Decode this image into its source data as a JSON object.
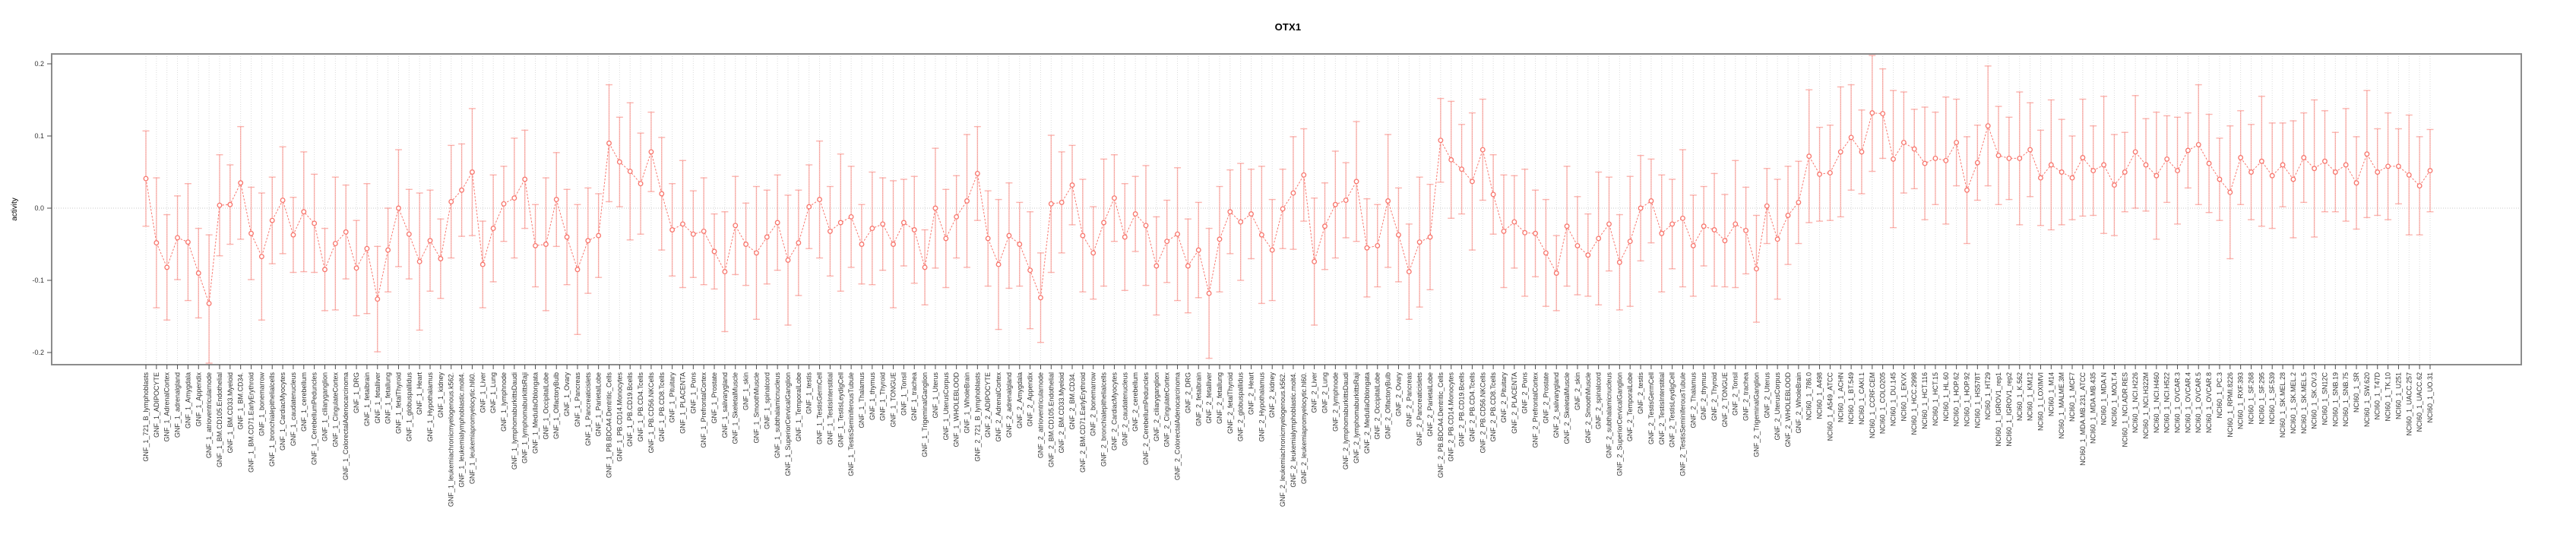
{
  "figure": {
    "title": "OTX1"
  },
  "y_axis": {
    "label": "activity",
    "tick_labels": [
      "0.2",
      "0.1",
      "0.0",
      "-0.1",
      "-0.2"
    ],
    "tick_values": [
      0.2,
      0.1,
      0.0,
      -0.1,
      -0.2
    ]
  },
  "style": {
    "accent": "#F8766D",
    "errorbar": "rgba(248,118,109,0.55)",
    "grid": "#DBDBDB",
    "zero_line": "#C8C8C8",
    "panel_border": "#8C8C8C",
    "axis_text": "#333333"
  },
  "chart_data": {
    "type": "line",
    "title": "OTX1",
    "xlabel": "",
    "ylabel": "activity",
    "ylim": [
      -0.215,
      0.215
    ],
    "grid": "vertical-dotted, zero-line-dotted",
    "legend": "none",
    "marker": "open-circle",
    "line_style": "dashed",
    "error_bars": true,
    "categories": [
      "GNF_1_721_B_lymphoblasts",
      "GNF_1_ADIPOCYTE",
      "GNF_1_AdrenalCortex",
      "GNF_1_adrenalgland",
      "GNF_1_Amygdala",
      "GNF_1_Appendix",
      "GNF_1_atrioventricularnode",
      "GNF_1_BM.CD105.Endothelial",
      "GNF_1_BM.CD33.Myeloid",
      "GNF_1_BM.CD34.",
      "GNF_1_BM.CD71.EarlyErythroid",
      "GNF_1_bonemarrow",
      "GNF_1_bronchialepithelialcells",
      "GNF_1_CardiacMyocytes",
      "GNF_1_caudatenucleus",
      "GNF_1_cerebellum",
      "GNF_1_CerebellumPeduncles",
      "GNF_1_ciliaryganglion",
      "GNF_1_CingulateCortex",
      "GNF_1_ColorectalAdenocarcinoma",
      "GNF_1_DRG",
      "GNF_1_fetalbrain",
      "GNF_1_fetalliver",
      "GNF_1_fetallung",
      "GNF_1_fetalThyroid",
      "GNF_1_globuspallidus",
      "GNF_1_Heart",
      "GNF_1_Hypothalamus",
      "GNF_1_kidney",
      "GNF_1_leukemiachronicmyelogenous.k562.",
      "GNF_1_leukemialymphoblastic.molt4.",
      "GNF_1_leukemiapromyelocytic.hl60.",
      "GNF_1_Liver",
      "GNF_1_Lung",
      "GNF_1_lymphnode",
      "GNF_1_lymphomaburkittsDaudi",
      "GNF_1_lymphomaburkittsRaji",
      "GNF_1_MedullaOblongata",
      "GNF_1_OccipitalLobe",
      "GNF_1_OlfactoryBulb",
      "GNF_1_Ovary",
      "GNF_1_Pancreas",
      "GNF_1_Pancreaticislets",
      "GNF_1_ParietalLobe",
      "GNF_1_PB.BDCA4.Dentritic_Cells",
      "GNF_1_PB.CD14.Monocytes",
      "GNF_1_PB.CD19.Bcells",
      "GNF_1_PB.CD4.Tcells",
      "GNF_1_PB.CD56.NKCells",
      "GNF_1_PB.CD8.Tcells",
      "GNF_1_Pituitary",
      "GNF_1_PLACENTA",
      "GNF_1_Pons",
      "GNF_1_PrefrontalCortex",
      "GNF_1_Prostate",
      "GNF_1_salivarygland",
      "GNF_1_SkeletalMuscle",
      "GNF_1_skin",
      "GNF_1_SmoothMuscle",
      "GNF_1_spinalcord",
      "GNF_1_subthalamicnucleus",
      "GNF_1_SuperiorCervicalGanglion",
      "GNF_1_TemporalLobe",
      "GNF_1_testis",
      "GNF_1_TestisGermCell",
      "GNF_1_TestisInterstitial",
      "GNF_1_TestisLeydigCell",
      "GNF_1_TestisSeminiferousTubule",
      "GNF_1_Thalamus",
      "GNF_1_thymus",
      "GNF_1_Thyroid",
      "GNF_1_TONGUE",
      "GNF_1_Tonsil",
      "GNF_1_trachea",
      "GNF_1_TrigeminalGanglion",
      "GNF_1_Uterus",
      "GNF_1_UterusCorpus",
      "GNF_1_WHOLEBLOOD",
      "GNF_1_WholeBrain",
      "GNF_2_721_B_lymphoblasts",
      "GNF_2_ADIPOCYTE",
      "GNF_2_AdrenalCortex",
      "GNF_2_adrenalgland",
      "GNF_2_Amygdala",
      "GNF_2_Appendix",
      "GNF_2_atrioventricularnode",
      "GNF_2_BM.CD105.Endothelial",
      "GNF_2_BM.CD33.Myeloid",
      "GNF_2_BM.CD34.",
      "GNF_2_BM.CD71.EarlyErythroid",
      "GNF_2_bonemarrow",
      "GNF_2_bronchialepithelialcells",
      "GNF_2_CardiacMyocytes",
      "GNF_2_caudatenucleus",
      "GNF_2_cerebellum",
      "GNF_2_CerebellumPeduncles",
      "GNF_2_ciliaryganglion",
      "GNF_2_CingulateCortex",
      "GNF_2_ColorectalAdenocarcinoma",
      "GNF_2_DRG",
      "GNF_2_fetalbrain",
      "GNF_2_fetalliver",
      "GNF_2_fetallung",
      "GNF_2_fetalThyroid",
      "GNF_2_globuspallidus",
      "GNF_2_Heart",
      "GNF_2_Hypothalamus",
      "GNF_2_kidney",
      "GNF_2_leukemiachronicmyelogenous.k562.",
      "GNF_2_leukemialymphoblastic.molt4.",
      "GNF_2_leukemiapromyelocytic.hl60.",
      "GNF_2_Liver",
      "GNF_2_Lung",
      "GNF_2_lymphnode",
      "GNF_2_lymphomaburkittsDaudi",
      "GNF_2_lymphomaburkittsRaji",
      "GNF_2_MedullaOblongata",
      "GNF_2_OccipitalLobe",
      "GNF_2_OlfactoryBulb",
      "GNF_2_Ovary",
      "GNF_2_Pancreas",
      "GNF_2_Pancreaticislets",
      "GNF_2_ParietalLobe",
      "GNF_2_PB.BDCA4.Dentritic_Cells",
      "GNF_2_PB.CD14.Monocytes",
      "GNF_2_PB.CD19.Bcells",
      "GNF_2_PB.CD4.Tcells",
      "GNF_2_PB.CD56.NKCells",
      "GNF_2_PB.CD8.Tcells",
      "GNF_2_Pituitary",
      "GNF_2_PLACENTA",
      "GNF_2_Pons",
      "GNF_2_PrefrontalCortex",
      "GNF_2_Prostate",
      "GNF_2_salivarygland",
      "GNF_2_SkeletalMuscle",
      "GNF_2_skin",
      "GNF_2_SmoothMuscle",
      "GNF_2_spinalcord",
      "GNF_2_subthalamicnucleus",
      "GNF_2_SuperiorCervicalGanglion",
      "GNF_2_TemporalLobe",
      "GNF_2_testis",
      "GNF_2_TestisGermCell",
      "GNF_2_TestisInterstitial",
      "GNF_2_TestisLeydigCell",
      "GNF_2_TestisSeminiferousTubule",
      "GNF_2_Thalamus",
      "GNF_2_thymus",
      "GNF_2_Thyroid",
      "GNF_2_TONGUE",
      "GNF_2_Tonsil",
      "GNF_2_trachea",
      "GNF_2_TrigeminalGanglion",
      "GNF_2_Uterus",
      "GNF_2_UterusCorpus",
      "GNF_2_WHOLEBLOOD",
      "GNF_2_WholeBrain",
      "NCI60_1_786.0",
      "NCI60_1_A498",
      "NCI60_1_A549_ATCC",
      "NCI60_1_ACHN",
      "NCI60_1_BT.549",
      "NCI60_1_CAKI.1",
      "NCI60_1_CCRF.CEM",
      "NCI60_1_COLO205",
      "NCI60_1_DU.145",
      "NCI60_1_EKVX",
      "NCI60_1_HCC.2998",
      "NCI60_1_HCT.116",
      "NCI60_1_HCT.15",
      "NCI60_1_HL.60",
      "NCI60_1_HOP.62",
      "NCI60_1_HOP.92",
      "NCI60_1_HS578T",
      "NCI60_1_HT29",
      "NCI60_1_IGROV1_rep1",
      "NCI60_1_IGROV1_rep2",
      "NCI60_1_K.562",
      "NCI60_1_KM12",
      "NCI60_1_LOXIMVI",
      "NCI60_1_M14",
      "NCI60_1_MALME.3M",
      "NCI60_1_MCF7",
      "NCI60_1_MDA.MB.231_ATCC",
      "NCI60_1_MDA.MB.435",
      "NCI60_1_MDA.N",
      "NCI60_1_MOLT.4",
      "NCI60_1_NCI.ADR.RES",
      "NCI60_1_NCI.H226",
      "NCI60_1_NCI.H322M",
      "NCI60_1_NCI.H460",
      "NCI60_1_NCI.H522",
      "NCI60_1_OVCAR.3",
      "NCI60_1_OVCAR.4",
      "NCI60_1_OVCAR.5",
      "NCI60_1_OVCAR.8",
      "NCI60_1_PC.3",
      "NCI60_1_RPMI.8226",
      "NCI60_1_RXF.393",
      "NCI60_1_SF.268",
      "NCI60_1_SF.295",
      "NCI60_1_SF.539",
      "NCI60_1_SK.MEL.28",
      "NCI60_1_SK.MEL.2",
      "NCI60_1_SK.MEL.5",
      "NCI60_1_SK.OV.3",
      "NCI60_1_SN12C",
      "NCI60_1_SNB.19",
      "NCI60_1_SNB.75",
      "NCI60_1_SR",
      "NCI60_1_SW.620",
      "NCI60_1_T47D",
      "NCI60_1_TK.10",
      "NCI60_1_U251",
      "NCI60_1_UACC.257",
      "NCI60_1_UACC.62",
      "NCI60_1_UO.31"
    ],
    "values": [
      0.041,
      -0.048,
      -0.082,
      -0.041,
      -0.047,
      -0.09,
      -0.132,
      0.004,
      0.005,
      0.035,
      -0.035,
      -0.067,
      -0.017,
      0.011,
      -0.037,
      -0.005,
      -0.021,
      -0.085,
      -0.049,
      -0.033,
      -0.083,
      -0.056,
      -0.126,
      -0.058,
      0.0,
      -0.036,
      -0.074,
      -0.045,
      -0.07,
      0.009,
      0.025,
      0.05,
      -0.078,
      -0.028,
      0.006,
      0.014,
      0.04,
      -0.052,
      -0.05,
      0.012,
      -0.04,
      -0.085,
      -0.045,
      -0.038,
      0.09,
      0.064,
      0.051,
      0.034,
      0.078,
      0.02,
      -0.03,
      -0.022,
      -0.036,
      -0.032,
      -0.06,
      -0.088,
      -0.024,
      -0.05,
      -0.062,
      -0.04,
      -0.02,
      -0.072,
      -0.048,
      0.002,
      0.012,
      -0.032,
      -0.02,
      -0.012,
      -0.05,
      -0.028,
      -0.022,
      -0.05,
      -0.02,
      -0.03,
      -0.082,
      0.0,
      -0.042,
      -0.012,
      0.01,
      0.048,
      -0.042,
      -0.078,
      -0.038,
      -0.05,
      -0.086,
      -0.124,
      0.006,
      0.008,
      0.032,
      -0.038,
      -0.062,
      -0.02,
      0.014,
      -0.04,
      -0.008,
      -0.024,
      -0.08,
      -0.046,
      -0.036,
      -0.08,
      -0.058,
      -0.118,
      -0.043,
      -0.005,
      -0.019,
      -0.008,
      -0.037,
      -0.058,
      -0.001,
      0.021,
      0.046,
      -0.074,
      -0.025,
      0.005,
      0.011,
      0.037,
      -0.055,
      -0.052,
      0.01,
      -0.037,
      -0.088,
      -0.047,
      -0.04,
      0.094,
      0.067,
      0.054,
      0.037,
      0.081,
      0.019,
      -0.032,
      -0.019,
      -0.034,
      -0.035,
      -0.062,
      -0.09,
      -0.025,
      -0.052,
      -0.065,
      -0.042,
      -0.022,
      -0.075,
      -0.046,
      0.0,
      0.01,
      -0.035,
      -0.022,
      -0.014,
      -0.052,
      -0.025,
      -0.03,
      -0.045,
      -0.022,
      -0.031,
      -0.084,
      0.003,
      -0.043,
      -0.01,
      0.008,
      0.072,
      0.047,
      0.049,
      0.078,
      0.098,
      0.078,
      0.132,
      0.131,
      0.068,
      0.091,
      0.082,
      0.062,
      0.069,
      0.066,
      0.091,
      0.025,
      0.063,
      0.114,
      0.073,
      0.069,
      0.069,
      0.081,
      0.042,
      0.06,
      0.05,
      0.042,
      0.07,
      0.052,
      0.06,
      0.032,
      0.05,
      0.078,
      0.06,
      0.045,
      0.068,
      0.052,
      0.08,
      0.088,
      0.062,
      0.04,
      0.022,
      0.07,
      0.05,
      0.065,
      0.045,
      0.06,
      0.04,
      0.07,
      0.055,
      0.065,
      0.05,
      0.06,
      0.035,
      0.075,
      0.05,
      0.058,
      0.058,
      0.046,
      0.031,
      0.052
    ],
    "ci_halfwidth": [
      0.066,
      0.09,
      0.073,
      0.058,
      0.081,
      0.062,
      0.095,
      0.07,
      0.055,
      0.078,
      0.064,
      0.088,
      0.06,
      0.074,
      0.052,
      0.083,
      0.068,
      0.057,
      0.092,
      0.065,
      0.066,
      0.09,
      0.073,
      0.058,
      0.081,
      0.062,
      0.095,
      0.07,
      0.055,
      0.078,
      0.064,
      0.088,
      0.06,
      0.074,
      0.052,
      0.083,
      0.068,
      0.057,
      0.092,
      0.065,
      0.066,
      0.09,
      0.073,
      0.058,
      0.081,
      0.062,
      0.095,
      0.07,
      0.055,
      0.078,
      0.064,
      0.088,
      0.06,
      0.074,
      0.052,
      0.083,
      0.068,
      0.057,
      0.092,
      0.065,
      0.066,
      0.09,
      0.073,
      0.058,
      0.081,
      0.062,
      0.095,
      0.07,
      0.055,
      0.078,
      0.064,
      0.088,
      0.06,
      0.074,
      0.052,
      0.083,
      0.068,
      0.057,
      0.092,
      0.065,
      0.066,
      0.09,
      0.073,
      0.058,
      0.081,
      0.062,
      0.095,
      0.07,
      0.055,
      0.078,
      0.064,
      0.088,
      0.06,
      0.074,
      0.052,
      0.083,
      0.068,
      0.057,
      0.092,
      0.065,
      0.066,
      0.09,
      0.073,
      0.058,
      0.081,
      0.062,
      0.095,
      0.07,
      0.055,
      0.078,
      0.064,
      0.088,
      0.06,
      0.074,
      0.052,
      0.083,
      0.068,
      0.057,
      0.092,
      0.065,
      0.066,
      0.09,
      0.073,
      0.058,
      0.081,
      0.062,
      0.095,
      0.07,
      0.055,
      0.078,
      0.064,
      0.088,
      0.06,
      0.074,
      0.052,
      0.083,
      0.068,
      0.057,
      0.092,
      0.065,
      0.066,
      0.09,
      0.073,
      0.058,
      0.081,
      0.062,
      0.095,
      0.07,
      0.055,
      0.078,
      0.064,
      0.088,
      0.06,
      0.074,
      0.052,
      0.083,
      0.068,
      0.057,
      0.092,
      0.065,
      0.066,
      0.09,
      0.073,
      0.058,
      0.081,
      0.062,
      0.095,
      0.07,
      0.055,
      0.078,
      0.064,
      0.088,
      0.06,
      0.074,
      0.052,
      0.083,
      0.068,
      0.057,
      0.092,
      0.065,
      0.066,
      0.09,
      0.073,
      0.058,
      0.081,
      0.062,
      0.095,
      0.07,
      0.055,
      0.078,
      0.064,
      0.088,
      0.06,
      0.074,
      0.052,
      0.083,
      0.068,
      0.057,
      0.092,
      0.065,
      0.066,
      0.09,
      0.073,
      0.058,
      0.081,
      0.062,
      0.095,
      0.07,
      0.055,
      0.078,
      0.064,
      0.088,
      0.06,
      0.074,
      0.052,
      0.083,
      0.068,
      0.057
    ]
  }
}
